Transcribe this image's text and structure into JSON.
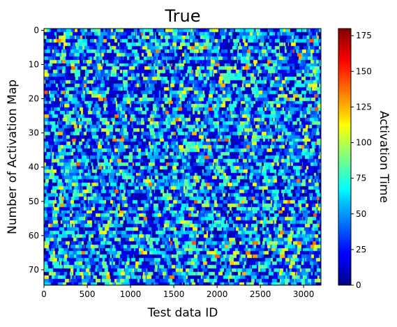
{
  "chart_data": {
    "type": "heatmap",
    "title": "True",
    "xlabel": "Test data ID",
    "ylabel": "Number of Activation Map",
    "colorbar_label": "Activation Time",
    "colormap": "jet",
    "x_range": [
      0,
      3200
    ],
    "y_range": [
      0,
      74
    ],
    "n_rows": 75,
    "n_cols": 3200,
    "y_inverted": true,
    "color_range": [
      0,
      180
    ],
    "typical_value_range": [
      0,
      100
    ],
    "x_ticks": [
      0,
      500,
      1000,
      1500,
      2000,
      2500,
      3000
    ],
    "x_tick_labels": [
      "0",
      "500",
      "1000",
      "1500",
      "2000",
      "2500",
      "3000"
    ],
    "y_ticks": [
      0,
      10,
      20,
      30,
      40,
      50,
      60,
      70
    ],
    "y_tick_labels": [
      "0",
      "10",
      "20",
      "30",
      "40",
      "50",
      "60",
      "70"
    ],
    "colorbar_ticks": [
      0,
      25,
      50,
      75,
      100,
      125,
      150,
      175
    ],
    "colorbar_tick_labels": [
      "0",
      "25",
      "50",
      "75",
      "100",
      "125",
      "150",
      "175"
    ]
  }
}
